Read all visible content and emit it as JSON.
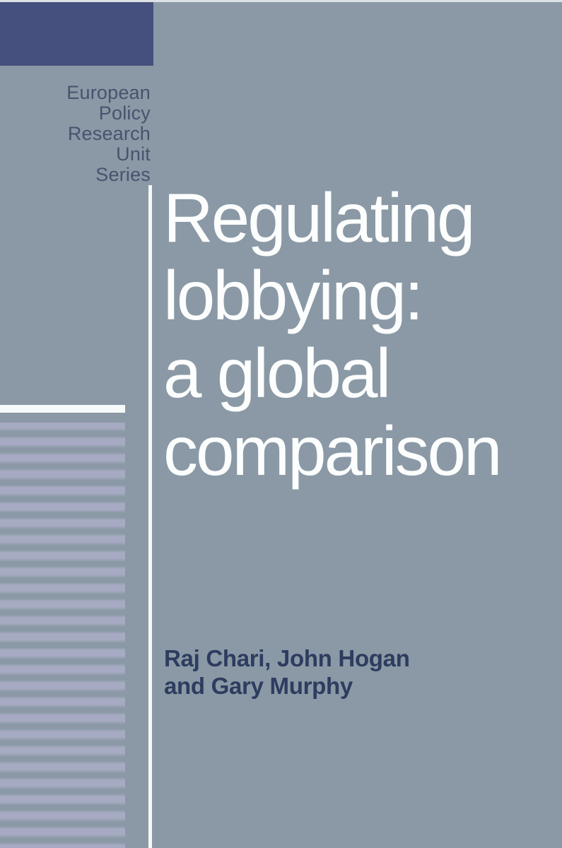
{
  "series_label": {
    "lines": [
      "European",
      "Policy",
      "Research",
      "Unit",
      "Series"
    ]
  },
  "title": {
    "lines": [
      "Regulating",
      "lobbying:",
      "a global",
      "comparison"
    ]
  },
  "authors": {
    "lines": [
      "Raj Chari, John Hogan",
      "and Gary Murphy"
    ]
  },
  "colors": {
    "background": "#8a99a5",
    "series_block": "#46507e",
    "series_text": "#47536f",
    "title_text": "#fcfdfd",
    "author_text": "#2d3c5f",
    "stripe": "#a6aac2",
    "rule": "#f5f8f9",
    "bar": "#f7fafa",
    "edge_highlight": "#dce2e6"
  }
}
